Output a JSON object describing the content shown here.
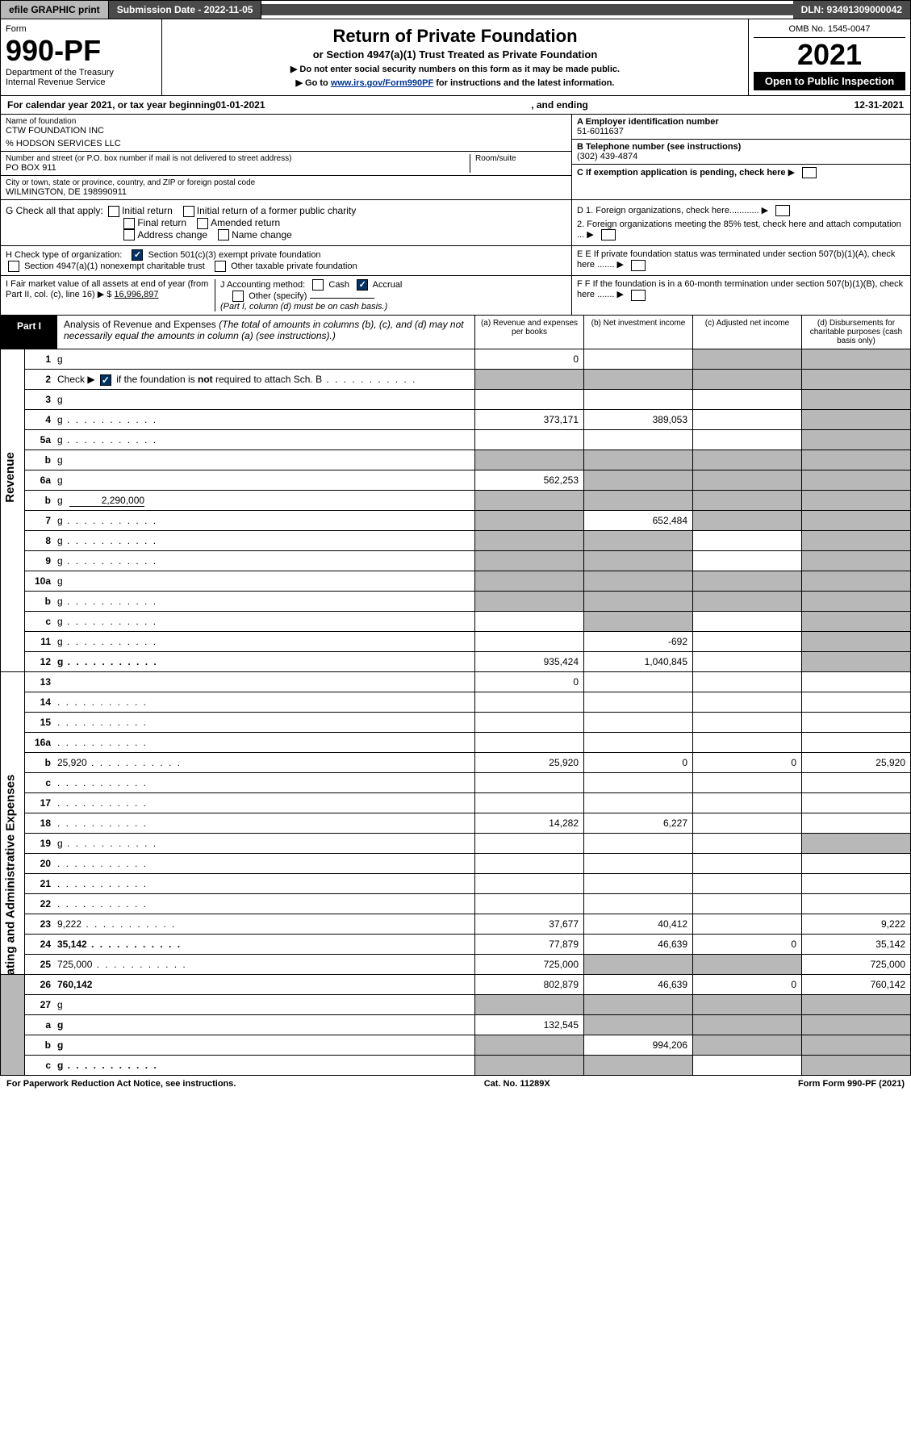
{
  "topbar": {
    "efile": "efile GRAPHIC print",
    "submission": "Submission Date - 2022-11-05",
    "dln": "DLN: 93491309000042"
  },
  "header": {
    "form_label": "Form",
    "form_num": "990-PF",
    "dept": "Department of the Treasury\nInternal Revenue Service",
    "title": "Return of Private Foundation",
    "subtitle": "or Section 4947(a)(1) Trust Treated as Private Foundation",
    "note1": "▶ Do not enter social security numbers on this form as it may be made public.",
    "note2": "▶ Go to ",
    "link": "www.irs.gov/Form990PF",
    "note3": " for instructions and the latest information.",
    "omb": "OMB No. 1545-0047",
    "year": "2021",
    "open": "Open to Public Inspection"
  },
  "calendar": {
    "prefix": "For calendar year 2021, or tax year beginning ",
    "begin": "01-01-2021",
    "mid": ", and ending ",
    "end": "12-31-2021"
  },
  "info": {
    "name_label": "Name of foundation",
    "name": "CTW FOUNDATION INC",
    "care_of": "% HODSON SERVICES LLC",
    "addr_label": "Number and street (or P.O. box number if mail is not delivered to street address)",
    "addr": "PO BOX 911",
    "room_label": "Room/suite",
    "city_label": "City or town, state or province, country, and ZIP or foreign postal code",
    "city": "WILMINGTON, DE  198990911",
    "a_label": "A Employer identification number",
    "a_val": "51-6011637",
    "b_label": "B Telephone number (see instructions)",
    "b_val": "(302) 439-4874",
    "c_label": "C If exemption application is pending, check here",
    "d1": "D 1. Foreign organizations, check here............",
    "d2": "2. Foreign organizations meeting the 85% test, check here and attach computation ...",
    "e_label": "E  If private foundation status was terminated under section 507(b)(1)(A), check here .......",
    "f_label": "F  If the foundation is in a 60-month termination under section 507(b)(1)(B), check here .......",
    "g_label": "G Check all that apply:",
    "g_opts": [
      "Initial return",
      "Initial return of a former public charity",
      "Final return",
      "Amended return",
      "Address change",
      "Name change"
    ],
    "h_label": "H Check type of organization:",
    "h_opt1": "Section 501(c)(3) exempt private foundation",
    "h_opt2": "Section 4947(a)(1) nonexempt charitable trust",
    "h_opt3": "Other taxable private foundation",
    "i_label": "I Fair market value of all assets at end of year (from Part II, col. (c), line 16) ▶ $",
    "i_val": "16,996,897",
    "j_label": "J Accounting method:",
    "j_cash": "Cash",
    "j_accrual": "Accrual",
    "j_other": "Other (specify)",
    "j_note": "(Part I, column (d) must be on cash basis.)"
  },
  "part1": {
    "tab": "Part I",
    "title": "Analysis of Revenue and Expenses",
    "title_note": " (The total of amounts in columns (b), (c), and (d) may not necessarily equal the amounts in column (a) (see instructions).)",
    "col_a": "(a) Revenue and expenses per books",
    "col_b": "(b) Net investment income",
    "col_c": "(c) Adjusted net income",
    "col_d": "(d) Disbursements for charitable purposes (cash basis only)"
  },
  "side_labels": {
    "revenue": "Revenue",
    "expenses": "Operating and Administrative Expenses"
  },
  "rows": [
    {
      "n": "1",
      "d": "g",
      "a": "0",
      "b": "",
      "c": "g"
    },
    {
      "n": "2",
      "d": "g",
      "dots": true,
      "a": "g",
      "b": "g",
      "c": "g",
      "checkgreen": true
    },
    {
      "n": "3",
      "d": "g",
      "a": "",
      "b": "",
      "c": ""
    },
    {
      "n": "4",
      "d": "g",
      "dots": true,
      "a": "373,171",
      "b": "389,053",
      "c": ""
    },
    {
      "n": "5a",
      "d": "g",
      "dots": true,
      "a": "",
      "b": "",
      "c": ""
    },
    {
      "n": "b",
      "d": "g",
      "a": "g",
      "b": "g",
      "c": "g"
    },
    {
      "n": "6a",
      "d": "g",
      "a": "562,253",
      "b": "g",
      "c": "g"
    },
    {
      "n": "b",
      "d": "g",
      "inline": "2,290,000",
      "a": "g",
      "b": "g",
      "c": "g"
    },
    {
      "n": "7",
      "d": "g",
      "dots": true,
      "a": "g",
      "b": "652,484",
      "c": "g"
    },
    {
      "n": "8",
      "d": "g",
      "dots": true,
      "a": "g",
      "b": "g",
      "c": ""
    },
    {
      "n": "9",
      "d": "g",
      "dots": true,
      "a": "g",
      "b": "g",
      "c": ""
    },
    {
      "n": "10a",
      "d": "g",
      "a": "g",
      "b": "g",
      "c": "g"
    },
    {
      "n": "b",
      "d": "g",
      "dots": true,
      "a": "g",
      "b": "g",
      "c": "g"
    },
    {
      "n": "c",
      "d": "g",
      "dots": true,
      "a": "",
      "b": "g",
      "c": ""
    },
    {
      "n": "11",
      "d": "g",
      "dots": true,
      "a": "",
      "b": "-692",
      "c": ""
    },
    {
      "n": "12",
      "d": "g",
      "dots": true,
      "bold": true,
      "a": "935,424",
      "b": "1,040,845",
      "c": ""
    },
    {
      "n": "13",
      "d": "",
      "a": "0",
      "b": "",
      "c": ""
    },
    {
      "n": "14",
      "d": "",
      "dots": true,
      "a": "",
      "b": "",
      "c": ""
    },
    {
      "n": "15",
      "d": "",
      "dots": true,
      "a": "",
      "b": "",
      "c": ""
    },
    {
      "n": "16a",
      "d": "",
      "dots": true,
      "a": "",
      "b": "",
      "c": ""
    },
    {
      "n": "b",
      "d": "25,920",
      "dots": true,
      "a": "25,920",
      "b": "0",
      "c": "0"
    },
    {
      "n": "c",
      "d": "",
      "dots": true,
      "a": "",
      "b": "",
      "c": ""
    },
    {
      "n": "17",
      "d": "",
      "dots": true,
      "a": "",
      "b": "",
      "c": ""
    },
    {
      "n": "18",
      "d": "",
      "dots": true,
      "a": "14,282",
      "b": "6,227",
      "c": ""
    },
    {
      "n": "19",
      "d": "g",
      "dots": true,
      "a": "",
      "b": "",
      "c": ""
    },
    {
      "n": "20",
      "d": "",
      "dots": true,
      "a": "",
      "b": "",
      "c": ""
    },
    {
      "n": "21",
      "d": "",
      "dots": true,
      "a": "",
      "b": "",
      "c": ""
    },
    {
      "n": "22",
      "d": "",
      "dots": true,
      "a": "",
      "b": "",
      "c": ""
    },
    {
      "n": "23",
      "d": "9,222",
      "dots": true,
      "a": "37,677",
      "b": "40,412",
      "c": ""
    },
    {
      "n": "24",
      "d": "35,142",
      "dots": true,
      "bold": true,
      "a": "77,879",
      "b": "46,639",
      "c": "0"
    },
    {
      "n": "25",
      "d": "725,000",
      "dots": true,
      "a": "725,000",
      "b": "g",
      "c": "g"
    },
    {
      "n": "26",
      "d": "760,142",
      "bold": true,
      "a": "802,879",
      "b": "46,639",
      "c": "0"
    },
    {
      "n": "27",
      "d": "g",
      "a": "g",
      "b": "g",
      "c": "g"
    },
    {
      "n": "a",
      "d": "g",
      "bold": true,
      "a": "132,545",
      "b": "g",
      "c": "g"
    },
    {
      "n": "b",
      "d": "g",
      "bold": true,
      "a": "g",
      "b": "994,206",
      "c": "g"
    },
    {
      "n": "c",
      "d": "g",
      "dots": true,
      "bold": true,
      "a": "g",
      "b": "g",
      "c": ""
    }
  ],
  "footer": {
    "left": "For Paperwork Reduction Act Notice, see instructions.",
    "mid": "Cat. No. 11289X",
    "right": "Form 990-PF (2021)"
  },
  "colors": {
    "grey": "#b8b8b8",
    "dark": "#4a4a4a",
    "link": "#003399",
    "checkblue": "#003366"
  }
}
